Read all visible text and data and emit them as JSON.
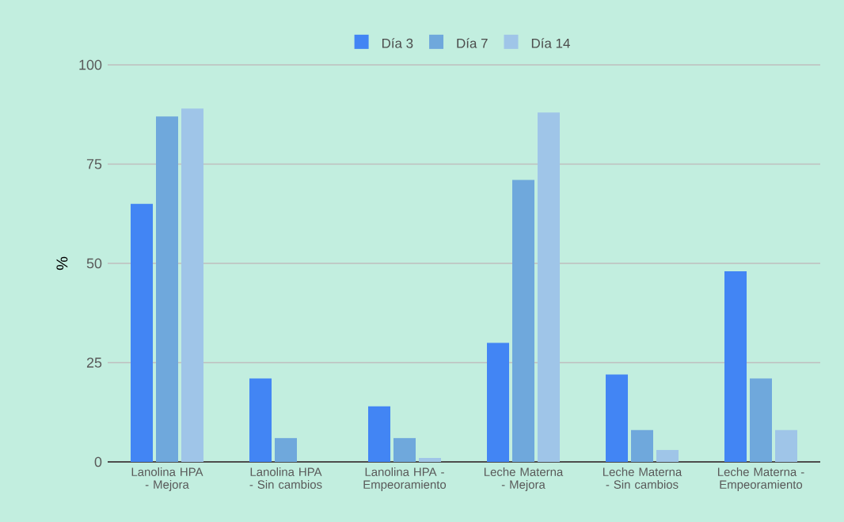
{
  "chart_data": {
    "type": "bar",
    "ylabel": "%",
    "categories": [
      "Lanolina HPA - Mejora",
      "Lanolina HPA - Sin cambios",
      "Lanolina HPA - Empeoramiento",
      "Leche Materna - Mejora",
      "Leche Materna - Sin cambios",
      "Leche Materna - Empeoramiento"
    ],
    "series": [
      {
        "name": "Día 3",
        "color": "#4285f4",
        "values": [
          65,
          21,
          14,
          30,
          22,
          48
        ]
      },
      {
        "name": "Día 7",
        "color": "#6fa8dc",
        "values": [
          87,
          6,
          6,
          71,
          8,
          21
        ]
      },
      {
        "name": "Día 14",
        "color": "#9fc5e8",
        "values": [
          89,
          0,
          1,
          88,
          3,
          8
        ]
      }
    ],
    "ylim": [
      0,
      100
    ],
    "yticks": [
      0,
      25,
      50,
      75,
      100
    ],
    "grid": "y",
    "legend": "top"
  }
}
